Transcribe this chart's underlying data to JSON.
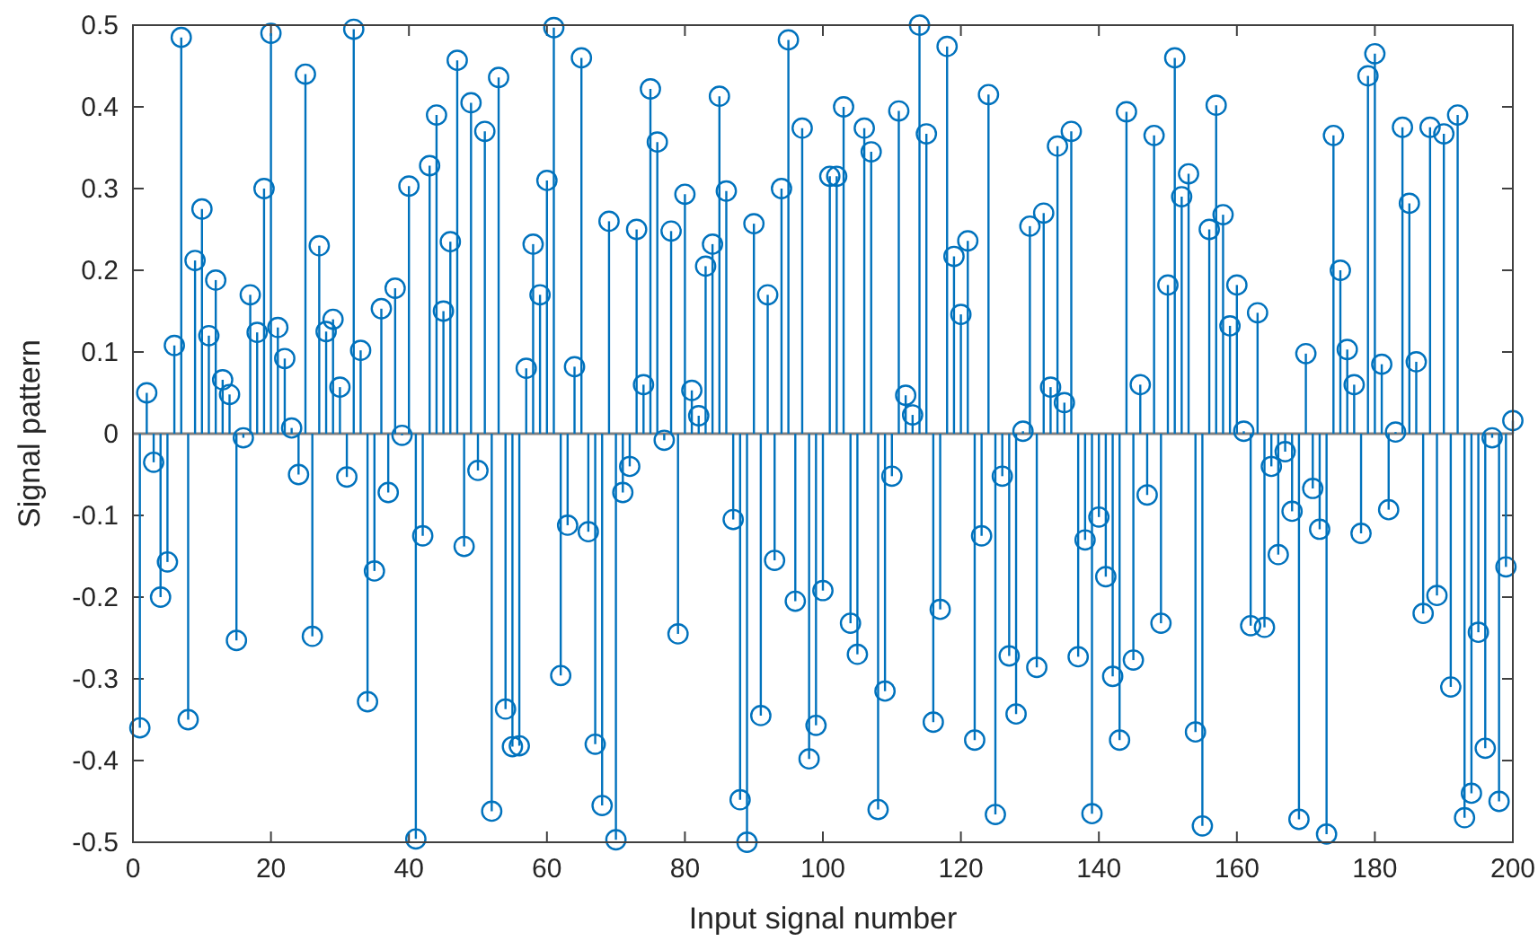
{
  "chart_data": {
    "type": "lollipop",
    "xlabel": "Input signal number",
    "ylabel": "Signal pattern",
    "marker": "circle",
    "grid": false,
    "ref_lines": [
      {
        "axis": "y",
        "value": 0,
        "color": "#808080"
      }
    ],
    "xlim": [
      0,
      200
    ],
    "xticks": [
      0,
      20,
      40,
      60,
      80,
      100,
      120,
      140,
      160,
      180,
      200
    ],
    "ylim": [
      -0.5,
      0.5
    ],
    "yticks": [
      -0.5,
      -0.4,
      -0.3,
      -0.2,
      -0.1,
      0,
      0.1,
      0.2,
      0.3,
      0.4,
      0.5
    ],
    "x": [
      1,
      2,
      3,
      4,
      5,
      6,
      7,
      8,
      9,
      10,
      11,
      12,
      13,
      14,
      15,
      16,
      17,
      18,
      19,
      20,
      21,
      22,
      23,
      24,
      25,
      26,
      27,
      28,
      29,
      30,
      31,
      32,
      33,
      34,
      35,
      36,
      37,
      38,
      39,
      40,
      41,
      42,
      43,
      44,
      45,
      46,
      47,
      48,
      49,
      50,
      51,
      52,
      53,
      54,
      55,
      56,
      57,
      58,
      59,
      60,
      61,
      62,
      63,
      64,
      65,
      66,
      67,
      68,
      69,
      70,
      71,
      72,
      73,
      74,
      75,
      76,
      77,
      78,
      79,
      80,
      81,
      82,
      83,
      84,
      85,
      86,
      87,
      88,
      89,
      90,
      91,
      92,
      93,
      94,
      95,
      96,
      97,
      98,
      99,
      100,
      101,
      102,
      103,
      104,
      105,
      106,
      107,
      108,
      109,
      110,
      111,
      112,
      113,
      114,
      115,
      116,
      117,
      118,
      119,
      120,
      121,
      122,
      123,
      124,
      125,
      126,
      127,
      128,
      129,
      130,
      131,
      132,
      133,
      134,
      135,
      136,
      137,
      138,
      139,
      140,
      141,
      142,
      143,
      144,
      145,
      146,
      147,
      148,
      149,
      150,
      151,
      152,
      153,
      154,
      155,
      156,
      157,
      158,
      159,
      160,
      161,
      162,
      163,
      164,
      165,
      166,
      167,
      168,
      169,
      170,
      171,
      172,
      173,
      174,
      175,
      176,
      177,
      178,
      179,
      180,
      181,
      182,
      183,
      184,
      185,
      186,
      187,
      188,
      189,
      190,
      191,
      192,
      193,
      194,
      195,
      196,
      197,
      198,
      199,
      200
    ],
    "series": [
      {
        "color": "#0072bd",
        "values": [
          -0.36,
          0.05,
          -0.035,
          -0.2,
          -0.157,
          0.108,
          0.485,
          -0.35,
          0.212,
          0.275,
          0.12,
          0.188,
          0.066,
          0.048,
          -0.253,
          -0.005,
          0.17,
          0.124,
          0.3,
          0.49,
          0.13,
          0.092,
          0.007,
          -0.05,
          0.44,
          -0.248,
          0.23,
          0.125,
          0.14,
          0.057,
          -0.053,
          0.495,
          0.102,
          -0.328,
          -0.168,
          0.153,
          -0.072,
          0.178,
          -0.002,
          0.303,
          -0.496,
          -0.125,
          0.328,
          0.39,
          0.15,
          0.235,
          0.457,
          -0.138,
          0.405,
          -0.045,
          0.37,
          -0.462,
          0.436,
          -0.337,
          -0.383,
          -0.382,
          0.08,
          0.232,
          0.17,
          0.31,
          0.497,
          -0.296,
          -0.112,
          0.082,
          0.46,
          -0.12,
          -0.38,
          -0.455,
          0.26,
          -0.497,
          -0.072,
          -0.04,
          0.25,
          0.06,
          0.422,
          0.357,
          -0.008,
          0.248,
          -0.245,
          0.293,
          0.053,
          0.022,
          0.205,
          0.232,
          0.413,
          0.297,
          -0.105,
          -0.448,
          -0.5,
          0.257,
          -0.345,
          0.17,
          -0.155,
          0.3,
          0.482,
          -0.205,
          0.374,
          -0.398,
          -0.357,
          -0.192,
          0.315,
          0.315,
          0.4,
          -0.232,
          -0.27,
          0.374,
          0.345,
          -0.46,
          -0.315,
          -0.052,
          0.395,
          0.047,
          0.023,
          0.5,
          0.367,
          -0.353,
          -0.215,
          0.474,
          0.217,
          0.146,
          0.236,
          -0.375,
          -0.125,
          0.415,
          -0.466,
          -0.052,
          -0.272,
          -0.343,
          0.003,
          0.254,
          -0.286,
          0.27,
          0.057,
          0.352,
          0.038,
          0.37,
          -0.273,
          -0.13,
          -0.465,
          -0.102,
          -0.175,
          -0.297,
          -0.375,
          0.394,
          -0.277,
          0.06,
          -0.075,
          0.365,
          -0.232,
          0.182,
          0.46,
          0.29,
          0.318,
          -0.365,
          -0.48,
          0.25,
          0.402,
          0.268,
          0.132,
          0.182,
          0.003,
          -0.235,
          0.148,
          -0.237,
          -0.04,
          -0.148,
          -0.022,
          -0.095,
          -0.472,
          0.098,
          -0.067,
          -0.117,
          -0.49,
          0.365,
          0.2,
          0.103,
          0.06,
          -0.122,
          0.438,
          0.465,
          0.085,
          -0.093,
          0.002,
          0.375,
          0.282,
          0.088,
          -0.22,
          0.375,
          -0.198,
          0.367,
          -0.31,
          0.39,
          -0.47,
          -0.44,
          -0.243,
          -0.385,
          -0.005,
          -0.45,
          -0.163,
          0.016
        ]
      }
    ]
  }
}
